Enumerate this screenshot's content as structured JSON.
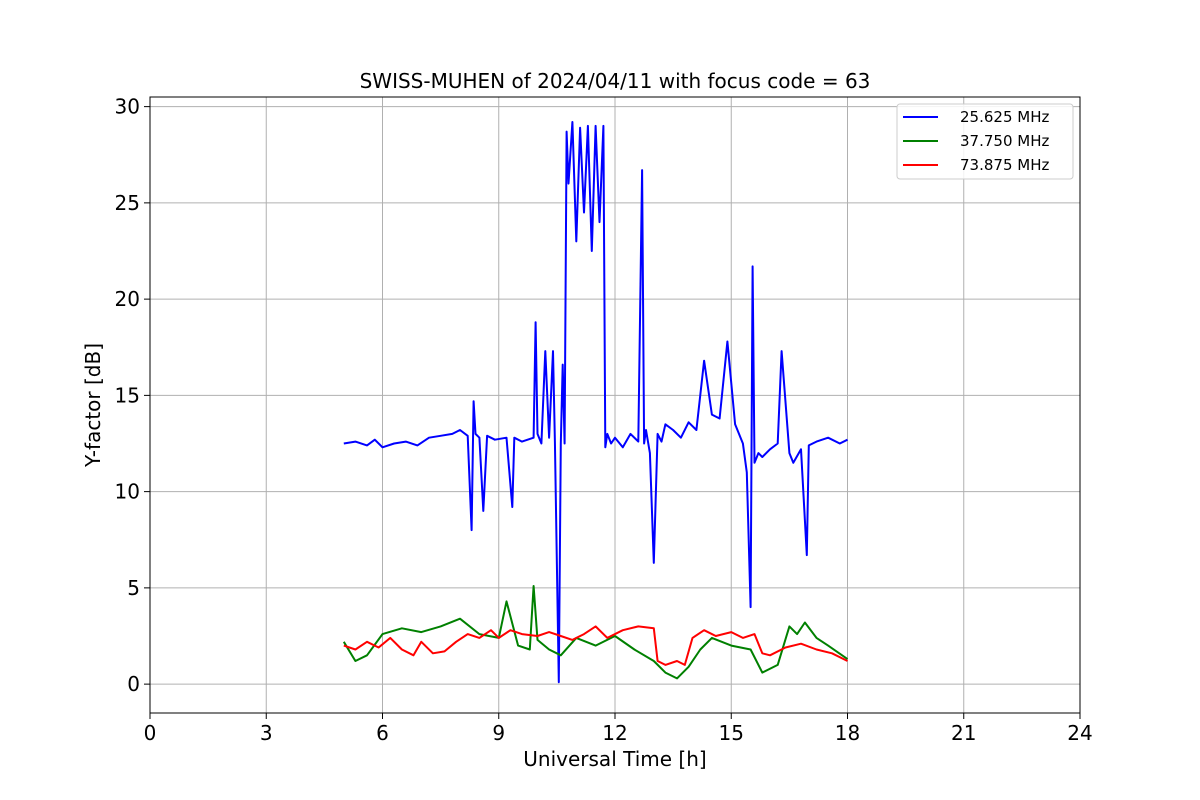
{
  "chart_data": {
    "type": "line",
    "title": "SWISS-MUHEN of 2024/04/11 with focus code = 63",
    "xlabel": "Universal Time [h]",
    "ylabel": "Y-factor [dB]",
    "xlim": [
      0,
      24
    ],
    "ylim": [
      -1.5,
      30.5
    ],
    "xticks": [
      0,
      3,
      6,
      9,
      12,
      15,
      18,
      21,
      24
    ],
    "yticks": [
      0,
      5,
      10,
      15,
      20,
      25,
      30
    ],
    "grid": true,
    "legend_position": "top-right",
    "series": [
      {
        "name": "25.625 MHz",
        "color": "#0000ff",
        "x": [
          5.0,
          5.3,
          5.6,
          5.8,
          6.0,
          6.3,
          6.6,
          6.9,
          7.2,
          7.5,
          7.8,
          8.0,
          8.2,
          8.3,
          8.35,
          8.4,
          8.5,
          8.6,
          8.7,
          8.9,
          9.2,
          9.35,
          9.4,
          9.6,
          9.9,
          9.95,
          10.0,
          10.1,
          10.2,
          10.3,
          10.4,
          10.45,
          10.55,
          10.6,
          10.65,
          10.7,
          10.75,
          10.8,
          10.9,
          11.0,
          11.1,
          11.2,
          11.3,
          11.4,
          11.5,
          11.6,
          11.7,
          11.75,
          11.8,
          11.9,
          12.0,
          12.2,
          12.4,
          12.6,
          12.7,
          12.75,
          12.8,
          12.9,
          13.0,
          13.1,
          13.2,
          13.3,
          13.5,
          13.7,
          13.9,
          14.1,
          14.3,
          14.5,
          14.7,
          14.9,
          15.1,
          15.3,
          15.4,
          15.5,
          15.55,
          15.6,
          15.7,
          15.8,
          16.0,
          16.2,
          16.3,
          16.5,
          16.6,
          16.8,
          16.95,
          17.0,
          17.2,
          17.5,
          17.8,
          18.0
        ],
        "y": [
          12.5,
          12.6,
          12.4,
          12.7,
          12.3,
          12.5,
          12.6,
          12.4,
          12.8,
          12.9,
          13.0,
          13.2,
          12.9,
          8.0,
          14.7,
          13.0,
          12.8,
          9.0,
          12.9,
          12.7,
          12.8,
          9.2,
          12.8,
          12.6,
          12.8,
          18.8,
          13.0,
          12.5,
          17.3,
          12.8,
          17.3,
          12.6,
          0.1,
          12.5,
          16.6,
          12.5,
          28.7,
          26.0,
          29.2,
          23.0,
          28.9,
          24.5,
          29.0,
          22.5,
          29.0,
          24.0,
          29.0,
          12.3,
          13.0,
          12.5,
          12.8,
          12.3,
          13.0,
          12.6,
          26.7,
          12.5,
          13.2,
          12.0,
          6.3,
          13.0,
          12.6,
          13.5,
          13.2,
          12.8,
          13.6,
          13.2,
          16.8,
          14.0,
          13.8,
          17.8,
          13.5,
          12.5,
          11.0,
          4.0,
          21.7,
          11.5,
          12.0,
          11.8,
          12.2,
          12.5,
          17.3,
          12.0,
          11.5,
          12.2,
          6.7,
          12.4,
          12.6,
          12.8,
          12.5,
          12.7
        ]
      },
      {
        "name": "37.750 MHz",
        "color": "#008000",
        "x": [
          5.0,
          5.3,
          5.6,
          6.0,
          6.5,
          7.0,
          7.5,
          8.0,
          8.5,
          9.0,
          9.2,
          9.5,
          9.8,
          9.9,
          10.0,
          10.3,
          10.6,
          11.0,
          11.5,
          12.0,
          12.5,
          13.0,
          13.3,
          13.6,
          13.9,
          14.2,
          14.5,
          15.0,
          15.5,
          15.8,
          16.2,
          16.5,
          16.7,
          16.9,
          17.2,
          17.5,
          18.0
        ],
        "y": [
          2.2,
          1.2,
          1.5,
          2.6,
          2.9,
          2.7,
          3.0,
          3.4,
          2.6,
          2.4,
          4.3,
          2.0,
          1.8,
          5.1,
          2.3,
          1.8,
          1.5,
          2.4,
          2.0,
          2.5,
          1.8,
          1.2,
          0.6,
          0.3,
          0.9,
          1.8,
          2.4,
          2.0,
          1.8,
          0.6,
          1.0,
          3.0,
          2.6,
          3.2,
          2.4,
          2.0,
          1.3
        ]
      },
      {
        "name": "73.875 MHz",
        "color": "#ff0000",
        "x": [
          5.0,
          5.3,
          5.6,
          5.9,
          6.2,
          6.5,
          6.8,
          7.0,
          7.3,
          7.6,
          7.9,
          8.2,
          8.5,
          8.8,
          9.0,
          9.3,
          9.6,
          10.0,
          10.3,
          10.6,
          10.9,
          11.2,
          11.5,
          11.8,
          12.2,
          12.6,
          13.0,
          13.1,
          13.3,
          13.6,
          13.8,
          14.0,
          14.3,
          14.6,
          15.0,
          15.3,
          15.6,
          15.8,
          16.0,
          16.4,
          16.8,
          17.2,
          17.6,
          18.0
        ],
        "y": [
          2.0,
          1.8,
          2.2,
          1.9,
          2.4,
          1.8,
          1.5,
          2.2,
          1.6,
          1.7,
          2.2,
          2.6,
          2.4,
          2.8,
          2.4,
          2.8,
          2.6,
          2.5,
          2.7,
          2.5,
          2.3,
          2.6,
          3.0,
          2.4,
          2.8,
          3.0,
          2.9,
          1.2,
          1.0,
          1.2,
          1.0,
          2.4,
          2.8,
          2.5,
          2.7,
          2.4,
          2.6,
          1.6,
          1.5,
          1.9,
          2.1,
          1.8,
          1.6,
          1.2
        ]
      }
    ]
  }
}
